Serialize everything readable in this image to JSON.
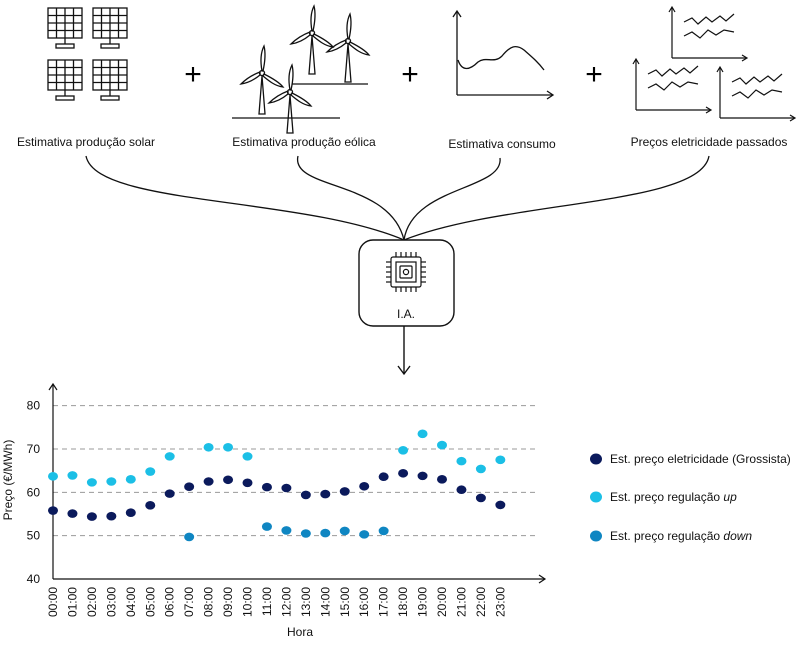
{
  "inputs": {
    "solar_label": "Estimativa produção solar",
    "wind_label": "Estimativa produção eólica",
    "consumption_label": "Estimativa consumo",
    "prices_label": "Preços eletricidade passados",
    "plus": "+"
  },
  "ai": {
    "label": "I.A."
  },
  "icons": [
    "solar-panel-icon",
    "wind-turbine-icon",
    "consumption-curve-icon",
    "price-charts-icon",
    "chip-icon",
    "arrow-down-icon"
  ],
  "colors": {
    "wholesale": "#0b1a5c",
    "up": "#1bbfe6",
    "down": "#0f86c2",
    "grid": "#9a9a9a",
    "line": "#111111"
  },
  "chart_data": {
    "type": "scatter",
    "xlabel": "Hora",
    "ylabel": "Preço (€/MWh)",
    "ylim": [
      40,
      85
    ],
    "yticks": [
      40,
      50,
      60,
      70,
      80
    ],
    "grid": "dashed horizontal at 50, 60, 70, 80",
    "legend_placement": "right",
    "categories": [
      "00:00",
      "01:00",
      "02:00",
      "03:00",
      "04:00",
      "05:00",
      "06:00",
      "07:00",
      "08:00",
      "09:00",
      "10:00",
      "11:00",
      "12:00",
      "13:00",
      "14:00",
      "15:00",
      "16:00",
      "17:00",
      "18:00",
      "19:00",
      "20:00",
      "21:00",
      "22:00",
      "23:00"
    ],
    "series": [
      {
        "name": "Est. preço eletricidade (Grossista)",
        "color": "#0b1a5c",
        "values": [
          55.8,
          55.1,
          54.4,
          54.5,
          55.3,
          57.0,
          59.7,
          61.3,
          62.5,
          62.9,
          62.2,
          61.2,
          61.0,
          59.4,
          59.6,
          60.2,
          61.4,
          63.6,
          64.4,
          63.8,
          63.0,
          60.6,
          58.7,
          57.1
        ]
      },
      {
        "name": "Est. preço regulação",
        "name_suffix": "up",
        "color": "#1bbfe6",
        "values": [
          63.7,
          63.9,
          62.3,
          62.5,
          63.0,
          64.8,
          68.3,
          null,
          70.4,
          70.4,
          68.3,
          null,
          null,
          null,
          null,
          null,
          null,
          null,
          69.7,
          73.5,
          70.9,
          67.2,
          65.4,
          67.5
        ]
      },
      {
        "name": "Est. preço regulação",
        "name_suffix": "down",
        "color": "#0f86c2",
        "values": [
          null,
          null,
          null,
          null,
          null,
          null,
          null,
          49.7,
          null,
          null,
          null,
          52.1,
          51.2,
          50.5,
          50.6,
          51.1,
          50.3,
          51.1,
          null,
          null,
          null,
          null,
          null,
          null
        ]
      }
    ]
  }
}
